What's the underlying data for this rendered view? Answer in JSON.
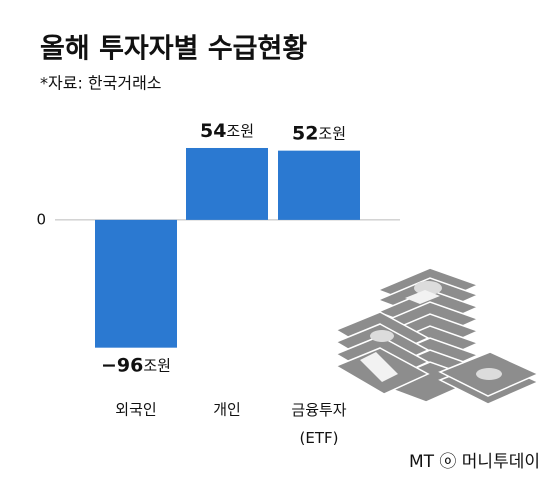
{
  "chart_data": {
    "type": "bar",
    "title": "올해 투자자별 수급현황",
    "subtitle": "*자료: 한국거래소",
    "categories": [
      "외국인",
      "개인",
      "금융투자\n(ETF)"
    ],
    "values": [
      -96,
      54,
      52
    ],
    "value_labels": [
      "−96조원",
      "54조원",
      "52조원"
    ],
    "color": "#2b79d1",
    "ylim": [
      -100,
      60
    ],
    "yticks": [
      0
    ],
    "watermark": "MT ⓞ 머니투데이"
  }
}
